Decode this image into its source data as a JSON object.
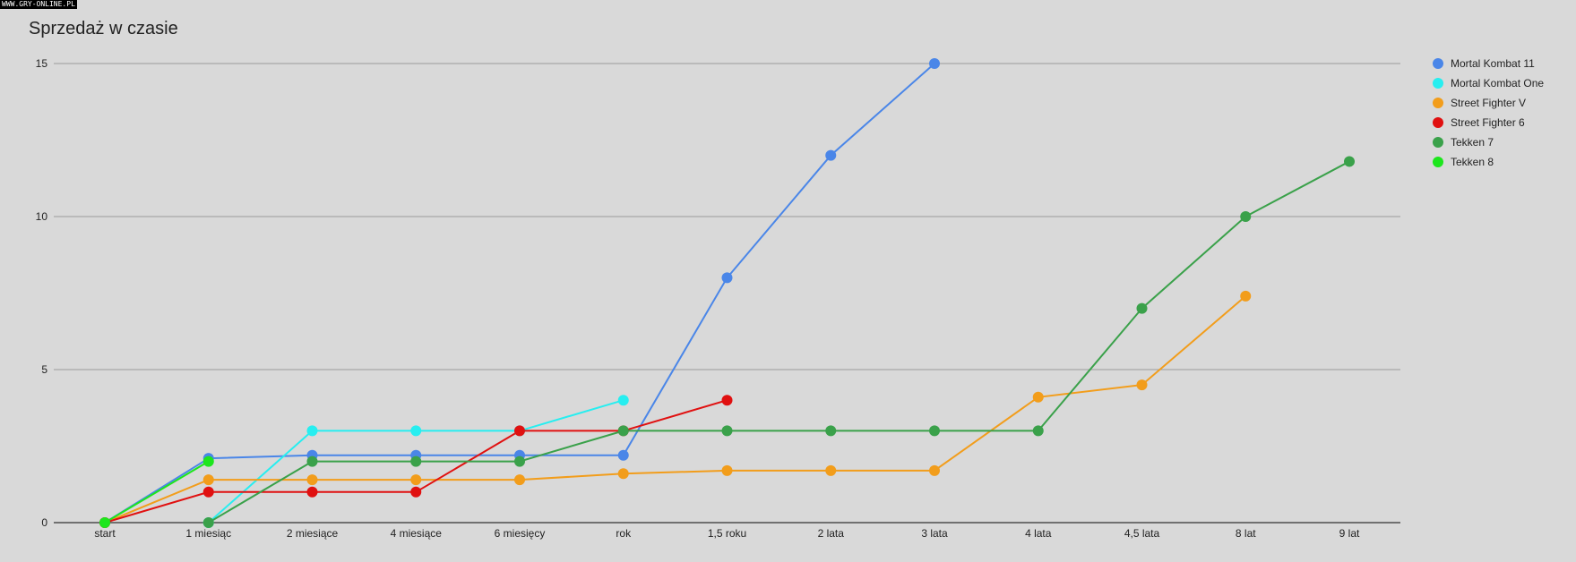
{
  "watermark": "WWW.GRY-ONLINE.PL",
  "chart_data": {
    "type": "line",
    "title": "Sprzedaż w czasie",
    "xlabel": "",
    "ylabel": "",
    "ylim": [
      0,
      15
    ],
    "yticks": [
      0,
      5,
      10,
      15
    ],
    "grid": true,
    "legend_position": "right",
    "categories": [
      "start",
      "1 miesiąc",
      "2 miesiące",
      "4 miesiące",
      "6 miesięcy",
      "rok",
      "1,5 roku",
      "2 lata",
      "3 lata",
      "4 lata",
      "4,5 lata",
      "8 lat",
      "9 lat"
    ],
    "series": [
      {
        "name": "Mortal Kombat 11",
        "color": "#4a86e8",
        "values": [
          0,
          2.1,
          2.2,
          2.2,
          2.2,
          2.2,
          8,
          12,
          15,
          null,
          null,
          null,
          null
        ]
      },
      {
        "name": "Mortal Kombat One",
        "color": "#27eef0",
        "values": [
          null,
          0,
          3,
          3,
          3,
          4,
          null,
          null,
          null,
          null,
          null,
          null,
          null
        ]
      },
      {
        "name": "Street Fighter V",
        "color": "#f29d1b",
        "values": [
          0,
          1.4,
          1.4,
          1.4,
          1.4,
          1.6,
          1.7,
          1.7,
          1.7,
          4.1,
          4.5,
          7.4,
          null
        ]
      },
      {
        "name": "Street Fighter 6",
        "color": "#e01010",
        "values": [
          0,
          1,
          1,
          1,
          3,
          3,
          4,
          null,
          null,
          null,
          null,
          null,
          null
        ]
      },
      {
        "name": "Tekken 7",
        "color": "#3aa14a",
        "values": [
          null,
          0,
          2,
          2,
          2,
          3,
          3,
          3,
          3,
          3,
          7,
          10,
          11.8
        ]
      },
      {
        "name": "Tekken 8",
        "color": "#1de61d",
        "values": [
          0,
          2,
          null,
          null,
          null,
          null,
          null,
          null,
          null,
          null,
          null,
          null,
          null
        ]
      }
    ]
  }
}
